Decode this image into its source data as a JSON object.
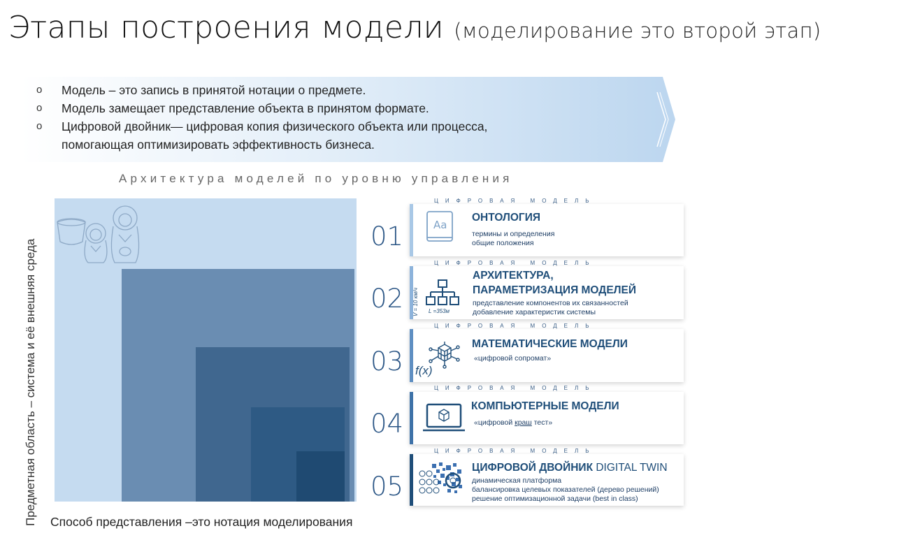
{
  "title": {
    "main": "Этапы построения модели",
    "sub": "(моделирование это второй этап)"
  },
  "bullets": [
    {
      "mark": "o",
      "text": "Модель – это запись в принятой нотации о предмете."
    },
    {
      "mark": "o",
      "text": "Модель замещает представление объекта в принятом формате."
    },
    {
      "mark": "o",
      "text": "Цифровой двойник— цифровая копия физического объекта или процесса, помогающая оптимизировать эффективность бизнеса."
    }
  ],
  "architecture_title": "Архитектура  моделей по уровню управления",
  "y_axis_label": "Предметная область – система и её внешняя среда",
  "x_axis_label": "Способ представления –это нотация моделирования",
  "kicker": "ЦИФРОВАЯ МОДЕЛЬ",
  "stages": [
    {
      "num": "01",
      "title": "ОНТОЛОГИЯ",
      "desc1": "термины и определения",
      "desc2": "общие положения",
      "icon": "book-icon"
    },
    {
      "num": "02",
      "title1": "АРХИТЕКТУРА,",
      "title2": "ПАРАМЕТРИЗАЦИЯ МОДЕЛЕЙ",
      "desc1": "представление компонентов  их связанностей",
      "desc2": "добавление характеристик системы",
      "icon": "hierarchy-icon",
      "note_v": "V = 10 км/ч",
      "note_l": "L =353м"
    },
    {
      "num": "03",
      "title": "МАТЕМАТИЧЕСКИЕ МОДЕЛИ",
      "desc1": "«цифровой сопромат»",
      "icon": "cube-network-icon",
      "formula": "f(x)"
    },
    {
      "num": "04",
      "title": "КОМПЬЮТЕРНЫЕ  МОДЕЛИ",
      "desc_pre": "«цифровой ",
      "desc_u": "краш",
      "desc_post": " тест»",
      "icon": "laptop-cube-icon"
    },
    {
      "num": "05",
      "title": "ЦИФРОВОЙ ДВОЙНИК",
      "title_en": "DIGITAL TWIN",
      "desc1": "динамическая платформа",
      "desc2": "балансировка целевых показателей (дерево решений)",
      "desc3": "решение оптимизационной задачи  (best in class)",
      "icon": "digital-gear-icon"
    }
  ],
  "colors": {
    "banner_light": "#c9dff3",
    "accent_blue": "#1f4e79",
    "square_light": "#c5dbf0",
    "square_dark": "#1f4a72"
  }
}
